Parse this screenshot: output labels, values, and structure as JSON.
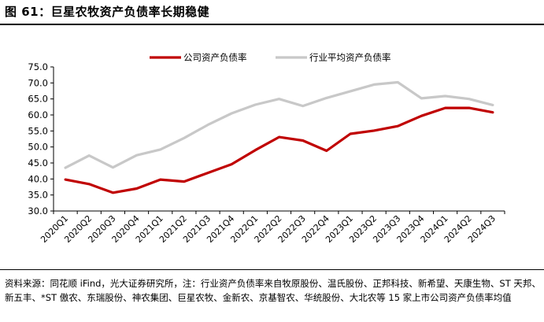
{
  "figure": {
    "title": "图 61：巨星农牧资产负债率长期稳健",
    "source": "资料来源：同花顺 iFind，光大证券研究所，注：行业资产负债率来自牧原股份、温氏股份、正邦科技、新希望、天康生物、ST 天邦、新五丰、*ST 傲农、东瑞股份、神农集团、巨星农牧、金新农、京基智农、华统股份、大北农等 15 家上市公司资产负债率均值"
  },
  "chart_data": {
    "type": "line",
    "categories": [
      "2020Q1",
      "2020Q2",
      "2020Q3",
      "2020Q4",
      "2021Q1",
      "2021Q2",
      "2021Q3",
      "2021Q4",
      "2022Q1",
      "2022Q2",
      "2022Q3",
      "2022Q4",
      "2023Q1",
      "2023Q2",
      "2023Q3",
      "2023Q4",
      "2024Q1",
      "2024Q2",
      "2024Q3"
    ],
    "series": [
      {
        "name": "公司资产负债率",
        "color": "#C00000",
        "values": [
          39.8,
          38.4,
          35.7,
          37.0,
          39.8,
          39.2,
          41.9,
          44.6,
          49.0,
          53.1,
          52.0,
          48.8,
          54.1,
          55.1,
          56.5,
          59.7,
          62.2,
          62.2,
          60.8
        ]
      },
      {
        "name": "行业平均资产负债率",
        "color": "#C8C8C8",
        "values": [
          43.5,
          47.3,
          43.6,
          47.4,
          49.2,
          52.8,
          56.9,
          60.5,
          63.2,
          65.0,
          62.8,
          65.3,
          67.4,
          69.5,
          70.2,
          65.2,
          65.9,
          65.0,
          63.1
        ]
      }
    ],
    "ylim": [
      30,
      75
    ],
    "yticks": [
      "30.0",
      "35.0",
      "40.0",
      "45.0",
      "50.0",
      "55.0",
      "60.0",
      "65.0",
      "70.0",
      "75.0"
    ],
    "ytick_values": [
      30,
      35,
      40,
      45,
      50,
      55,
      60,
      65,
      70,
      75
    ],
    "legend_position": "top-center",
    "grid": false
  }
}
